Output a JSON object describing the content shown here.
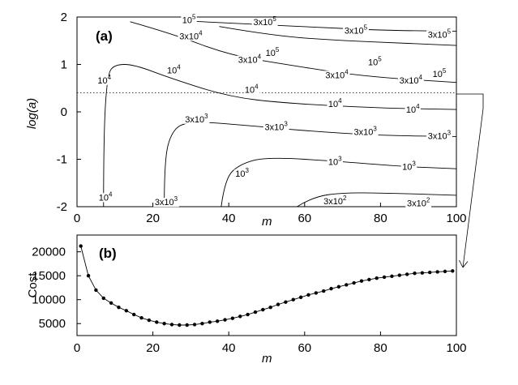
{
  "chart_data": [
    {
      "panel": "(a)",
      "type": "contour",
      "xlabel": "m",
      "ylabel": "log(a)",
      "xlim": [
        0,
        100
      ],
      "ylim": [
        -2,
        2
      ],
      "xticks": [
        "0",
        "20",
        "40",
        "60",
        "80",
        "100"
      ],
      "yticks": [
        "-2",
        "-1",
        "0",
        "1",
        "2"
      ],
      "reference_line_y": 0.4,
      "contours": [
        {
          "level": "10^5",
          "points": [
            [
              37.5,
              1.8
            ],
            [
              52,
              1.6
            ],
            [
              70,
              1.5
            ],
            [
              86,
              1.45
            ],
            [
              100,
              1.4
            ]
          ],
          "labels": [
            {
              "base": "10",
              "exp": "5",
              "x": 29.5,
              "y": 1.94
            },
            {
              "base": "10",
              "exp": "5",
              "x": 51.5,
              "y": 1.25
            },
            {
              "base": "10",
              "exp": "5",
              "x": 78.5,
              "y": 1.05
            },
            {
              "base": "10",
              "exp": "5",
              "x": 95.5,
              "y": 0.8
            }
          ]
        },
        {
          "level": "3x10^5",
          "points": [
            [
              28,
              1.92
            ],
            [
              45,
              1.85
            ],
            [
              65,
              1.78
            ],
            [
              80,
              1.72
            ],
            [
              100,
              1.7
            ]
          ],
          "labels": [
            {
              "base": "3x10",
              "exp": "5",
              "x": 49.5,
              "y": 1.9
            },
            {
              "base": "3x10",
              "exp": "5",
              "x": 73.5,
              "y": 1.72
            },
            {
              "base": "3x10",
              "exp": "5",
              "x": 95.5,
              "y": 1.63
            }
          ]
        },
        {
          "level": "3x10^4",
          "points": [
            [
              14,
              1.9
            ],
            [
              25,
              1.65
            ],
            [
              40,
              1.2
            ],
            [
              55,
              1.0
            ],
            [
              75,
              0.75
            ],
            [
              100,
              0.62
            ]
          ],
          "labels": [
            {
              "base": "3x10",
              "exp": "4",
              "x": 30,
              "y": 1.6
            },
            {
              "base": "3x10",
              "exp": "4",
              "x": 45.5,
              "y": 1.1
            },
            {
              "base": "3x10",
              "exp": "4",
              "x": 68.5,
              "y": 0.78
            },
            {
              "base": "3x10",
              "exp": "4",
              "x": 88,
              "y": 0.67
            }
          ]
        },
        {
          "level": "10^4",
          "points": [
            [
              7,
              -2.0
            ],
            [
              7,
              -0.5
            ],
            [
              8,
              0.8
            ],
            [
              10,
              1.0
            ],
            [
              15,
              1.0
            ],
            [
              25,
              0.7
            ],
            [
              40,
              0.32
            ],
            [
              55,
              0.18
            ],
            [
              80,
              0.08
            ],
            [
              100,
              0.05
            ]
          ],
          "labels": [
            {
              "base": "10",
              "exp": "4",
              "x": 7.5,
              "y": -1.8
            },
            {
              "base": "10",
              "exp": "4",
              "x": 7.2,
              "y": 0.67
            },
            {
              "base": "10",
              "exp": "4",
              "x": 25.5,
              "y": 0.88
            },
            {
              "base": "10",
              "exp": "4",
              "x": 46,
              "y": 0.47
            },
            {
              "base": "10",
              "exp": "4",
              "x": 68,
              "y": 0.17
            },
            {
              "base": "10",
              "exp": "4",
              "x": 88.5,
              "y": 0.05
            }
          ]
        },
        {
          "level": "3x10^3",
          "points": [
            [
              23,
              -2.0
            ],
            [
              23,
              -1.0
            ],
            [
              25,
              -0.4
            ],
            [
              29,
              -0.2
            ],
            [
              40,
              -0.25
            ],
            [
              60,
              -0.4
            ],
            [
              80,
              -0.5
            ],
            [
              100,
              -0.52
            ]
          ],
          "labels": [
            {
              "base": "3x10",
              "exp": "3",
              "x": 31.5,
              "y": -0.15
            },
            {
              "base": "3x10",
              "exp": "3",
              "x": 23.5,
              "y": -1.9
            },
            {
              "base": "3x10",
              "exp": "3",
              "x": 52.5,
              "y": -0.32
            },
            {
              "base": "3x10",
              "exp": "3",
              "x": 76,
              "y": -0.42
            },
            {
              "base": "3x10",
              "exp": "3",
              "x": 95.5,
              "y": -0.5
            }
          ]
        },
        {
          "level": "10^3",
          "points": [
            [
              38,
              -2.0
            ],
            [
              39,
              -1.4
            ],
            [
              43,
              -1.1
            ],
            [
              50,
              -0.95
            ],
            [
              70,
              -1.05
            ],
            [
              85,
              -1.15
            ],
            [
              100,
              -1.2
            ]
          ],
          "labels": [
            {
              "base": "10",
              "exp": "3",
              "x": 43.5,
              "y": -1.3
            },
            {
              "base": "10",
              "exp": "3",
              "x": 68,
              "y": -1.05
            },
            {
              "base": "10",
              "exp": "3",
              "x": 87.5,
              "y": -1.15
            }
          ]
        },
        {
          "level": "3x10^2",
          "points": [
            [
              58,
              -2.0
            ],
            [
              62,
              -1.8
            ],
            [
              70,
              -1.7
            ],
            [
              85,
              -1.72
            ],
            [
              100,
              -1.76
            ]
          ],
          "labels": [
            {
              "base": "3x10",
              "exp": "2",
              "x": 68,
              "y": -1.88
            },
            {
              "base": "3x10",
              "exp": "2",
              "x": 90,
              "y": -1.92
            }
          ]
        }
      ]
    },
    {
      "panel": "(b)",
      "type": "line",
      "xlabel": "m",
      "ylabel": "Cost",
      "xlim": [
        0,
        100
      ],
      "ylim": [
        2500,
        23500
      ],
      "xticks": [
        "0",
        "20",
        "40",
        "60",
        "80",
        "100"
      ],
      "yticks": [
        "5000",
        "10000",
        "15000",
        "20000"
      ],
      "series": [
        {
          "x": [
            1,
            3,
            5,
            7,
            9,
            11,
            13,
            15,
            17,
            19,
            21,
            23,
            25,
            27,
            29,
            31,
            33,
            35,
            37,
            39,
            41,
            43,
            45,
            47,
            49,
            51,
            53,
            55,
            57,
            59,
            61,
            63,
            65,
            67,
            69,
            71,
            73,
            75,
            77,
            79,
            81,
            83,
            85,
            87,
            89,
            91,
            93,
            95,
            97,
            99
          ],
          "values": [
            21200,
            15000,
            12000,
            10300,
            9300,
            8400,
            7700,
            6900,
            6200,
            5700,
            5300,
            5000,
            4800,
            4700,
            4700,
            4800,
            5000,
            5300,
            5500,
            5800,
            6100,
            6500,
            6900,
            7400,
            7900,
            8400,
            9000,
            9500,
            10000,
            10500,
            11000,
            11400,
            11800,
            12300,
            12700,
            13100,
            13500,
            13900,
            14200,
            14500,
            14700,
            14900,
            15100,
            15300,
            15500,
            15600,
            15700,
            15800,
            15900,
            16000
          ]
        }
      ]
    }
  ]
}
